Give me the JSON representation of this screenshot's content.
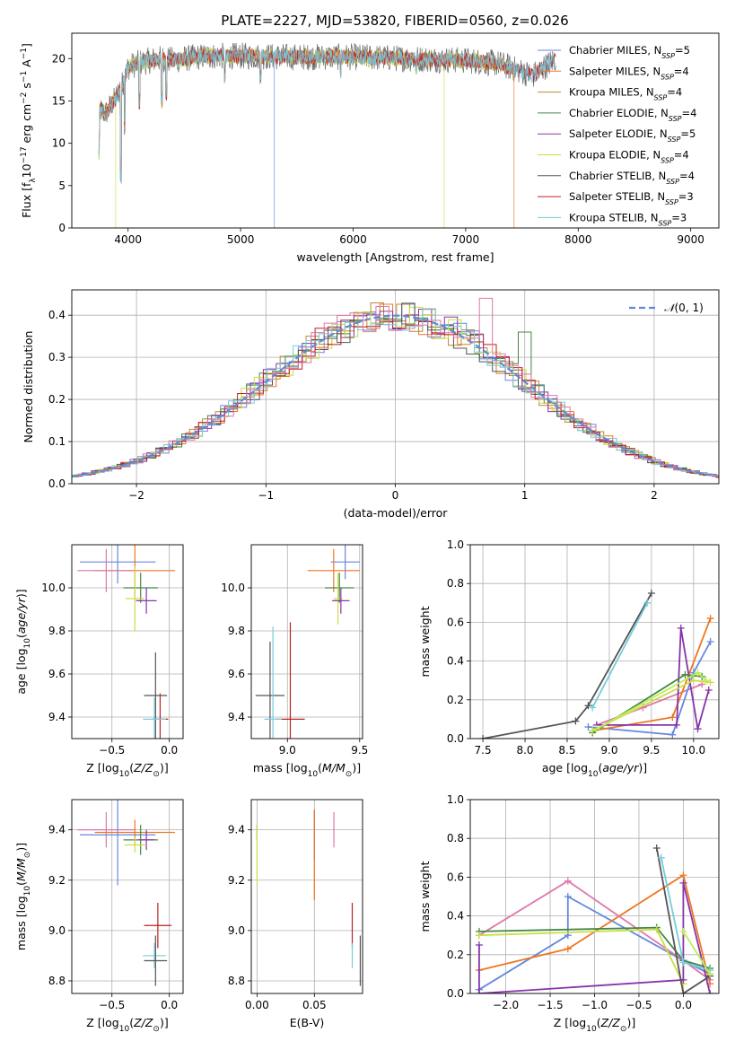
{
  "figure": {
    "title": "PLATE=2227, MJD=53820, FIBERID=0560, z=0.026"
  },
  "model_colors": {
    "Chabrier MILES": "#6688dd",
    "Salpeter MILES": "#ee7722",
    "Kroupa MILES": "#bb8833",
    "Chabrier ELODIE": "#448844",
    "Salpeter ELODIE": "#8833aa",
    "Kroupa ELODIE": "#ccdd44",
    "Chabrier STELIB": "#555555",
    "Salpeter STELIB": "#bb2222",
    "Kroupa STELIB": "#77ccdd",
    "pink": "#dd77aa",
    "lime": "#bbee55"
  },
  "chart_data": [
    {
      "type": "line",
      "panel": "spectrum",
      "title": "PLATE=2227, MJD=53820, FIBERID=0560, z=0.026",
      "xlabel": "wavelength [Angstrom, rest frame]",
      "ylabel": "Flux [f_λ10^-17 erg cm^-2 s^-1 A^-1]",
      "xlim": [
        3500,
        9250
      ],
      "ylim": [
        0,
        23
      ],
      "xticks": [
        4000,
        5000,
        6000,
        7000,
        8000,
        9000
      ],
      "yticks": [
        0,
        5,
        10,
        15,
        20
      ],
      "grid": false,
      "legend_position": "upper-right",
      "legend": [
        {
          "label": "Chabrier MILES, N_SSP=5",
          "color": "#6688dd"
        },
        {
          "label": "Salpeter MILES, N_SSP=4",
          "color": "#ee7722"
        },
        {
          "label": "Kroupa MILES, N_SSP=4",
          "color": "#bb8833"
        },
        {
          "label": "Chabrier ELODIE, N_SSP=4",
          "color": "#448844"
        },
        {
          "label": "Salpeter ELODIE, N_SSP=5",
          "color": "#8833aa"
        },
        {
          "label": "Kroupa ELODIE, N_SSP=4",
          "color": "#ccdd44"
        },
        {
          "label": "Chabrier STELIB, N_SSP=4",
          "color": "#555555"
        },
        {
          "label": "Salpeter STELIB, N_SSP=3",
          "color": "#bb2222"
        },
        {
          "label": "Kroupa STELIB, N_SSP=3",
          "color": "#77ccdd"
        }
      ],
      "continuum": {
        "x": [
          3740,
          3800,
          3900,
          3950,
          4000,
          4100,
          4200,
          4300,
          4400,
          4500,
          4700,
          5000,
          5500,
          6000,
          6500,
          7000,
          7300,
          7600,
          7800
        ],
        "y": [
          14,
          13.5,
          15.5,
          17,
          19,
          19.5,
          19.8,
          20,
          19.8,
          20,
          20.3,
          20.3,
          20.2,
          20.2,
          20.0,
          19.8,
          19.4,
          18.0,
          20.0
        ]
      },
      "dips": [
        {
          "wavelength": 3740,
          "depth": 8
        },
        {
          "wavelength": 3890,
          "depth": 0
        },
        {
          "wavelength": 3935,
          "depth": 5
        },
        {
          "wavelength": 3970,
          "depth": 11
        },
        {
          "wavelength": 4100,
          "depth": 14
        },
        {
          "wavelength": 4300,
          "depth": 14
        },
        {
          "wavelength": 4340,
          "depth": 15
        },
        {
          "wavelength": 4860,
          "depth": 17
        },
        {
          "wavelength": 5175,
          "depth": 17
        },
        {
          "wavelength": 5300,
          "depth": 0
        },
        {
          "wavelength": 5890,
          "depth": 17.5
        },
        {
          "wavelength": 6560,
          "depth": 18
        },
        {
          "wavelength": 6810,
          "depth": 0
        },
        {
          "wavelength": 7430,
          "depth": 0
        }
      ]
    },
    {
      "type": "bar",
      "panel": "residual-histogram",
      "xlabel": "(data-model)/error",
      "ylabel": "Normed distribution",
      "xlim": [
        -2.5,
        2.5
      ],
      "ylim": [
        0,
        0.46
      ],
      "xticks": [
        -2,
        -1,
        0,
        1,
        2
      ],
      "yticks": [
        0.0,
        0.1,
        0.2,
        0.3,
        0.4
      ],
      "grid": true,
      "legend_position": "upper-right",
      "legend": [
        {
          "label": "N(0,1)",
          "style": "dashed",
          "color": "#5b8bd6"
        }
      ],
      "bin_width": 0.1
    },
    {
      "type": "scatter",
      "panel": "age-vs-Z",
      "xlabel": "Z [log10(Z/Z⊙)]",
      "ylabel": "age  [log10(age/yr)]",
      "xlim": [
        -0.85,
        0.12
      ],
      "ylim": [
        9.3,
        10.2
      ],
      "xticks": [
        -0.5,
        0.0
      ],
      "yticks": [
        9.4,
        9.6,
        9.8,
        10.0
      ],
      "grid": true,
      "points": [
        {
          "model": "Chabrier MILES",
          "x": -0.45,
          "xerr": 0.33,
          "y": 10.12,
          "yerr": 0.1
        },
        {
          "model": "Salpeter MILES",
          "x": -0.3,
          "xerr": 0.35,
          "y": 10.08,
          "yerr": 0.12
        },
        {
          "model": "pink",
          "x": -0.55,
          "xerr": 0.25,
          "y": 10.08,
          "yerr": 0.1
        },
        {
          "model": "Chabrier ELODIE",
          "x": -0.25,
          "xerr": 0.15,
          "y": 10.0,
          "yerr": 0.07
        },
        {
          "model": "Kroupa ELODIE",
          "x": -0.3,
          "xerr": 0.08,
          "y": 9.95,
          "yerr": 0.15
        },
        {
          "model": "Salpeter ELODIE",
          "x": -0.2,
          "xerr": 0.09,
          "y": 9.94,
          "yerr": 0.06
        },
        {
          "model": "Chabrier STELIB",
          "x": -0.12,
          "xerr": 0.1,
          "y": 9.5,
          "yerr": 0.2
        },
        {
          "model": "Salpeter STELIB",
          "x": -0.08,
          "xerr": 0.07,
          "y": 9.39,
          "yerr": 0.12
        },
        {
          "model": "Kroupa STELIB",
          "x": -0.13,
          "xerr": 0.1,
          "y": 9.39,
          "yerr": 0.1
        }
      ]
    },
    {
      "type": "scatter",
      "panel": "age-vs-mass",
      "xlabel": "mass [log10(M/M⊙)]",
      "ylabel": "",
      "xlim": [
        8.75,
        9.52
      ],
      "ylim": [
        9.3,
        10.2
      ],
      "xticks": [
        9.0,
        9.5
      ],
      "yticks": [
        9.4,
        9.6,
        9.8,
        10.0
      ],
      "grid": true,
      "points": [
        {
          "model": "Chabrier MILES",
          "x": 9.4,
          "xerr": 0.1,
          "y": 10.12,
          "yerr": 0.08
        },
        {
          "model": "Salpeter MILES",
          "x": 9.32,
          "xerr": 0.18,
          "y": 10.08,
          "yerr": 0.1
        },
        {
          "model": "Chabrier ELODIE",
          "x": 9.36,
          "xerr": 0.1,
          "y": 10.0,
          "yerr": 0.07
        },
        {
          "model": "Kroupa ELODIE",
          "x": 9.35,
          "xerr": 0.03,
          "y": 9.95,
          "yerr": 0.12
        },
        {
          "model": "Salpeter ELODIE",
          "x": 9.37,
          "xerr": 0.06,
          "y": 9.94,
          "yerr": 0.06
        },
        {
          "model": "Chabrier STELIB",
          "x": 8.88,
          "xerr": 0.1,
          "y": 9.5,
          "yerr": 0.25
        },
        {
          "model": "Salpeter STELIB",
          "x": 9.02,
          "xerr": 0.1,
          "y": 9.39,
          "yerr": 0.45
        },
        {
          "model": "Kroupa STELIB",
          "x": 8.9,
          "xerr": 0.06,
          "y": 9.39,
          "yerr": 0.43
        }
      ]
    },
    {
      "type": "line",
      "panel": "mass-weight-vs-age",
      "xlabel": "age  [log10(age/yr)]",
      "ylabel": "mass weight",
      "xlim": [
        7.35,
        10.3
      ],
      "ylim": [
        0,
        1.0
      ],
      "xticks": [
        7.5,
        8.0,
        8.5,
        9.0,
        9.5,
        10.0
      ],
      "yticks": [
        0.0,
        0.2,
        0.4,
        0.6,
        0.8,
        1.0
      ],
      "grid": true,
      "series": [
        {
          "model": "Chabrier STELIB",
          "x": [
            7.5,
            8.6,
            8.75,
            9.5
          ],
          "y": [
            0.0,
            0.09,
            0.17,
            0.75
          ]
        },
        {
          "model": "Kroupa STELIB",
          "x": [
            8.8,
            9.45
          ],
          "y": [
            0.16,
            0.7
          ]
        },
        {
          "model": "pink",
          "x": [
            8.85,
            9.4,
            10.1
          ],
          "y": [
            0.07,
            0.16,
            0.28
          ]
        },
        {
          "model": "Chabrier MILES",
          "x": [
            8.75,
            9.75,
            10.0,
            10.2
          ],
          "y": [
            0.06,
            0.02,
            0.34,
            0.5
          ]
        },
        {
          "model": "Salpeter MILES",
          "x": [
            8.8,
            9.75,
            10.2
          ],
          "y": [
            0.04,
            0.11,
            0.62
          ]
        },
        {
          "model": "Salpeter ELODIE",
          "x": [
            8.85,
            9.8,
            9.85,
            10.05,
            10.18
          ],
          "y": [
            0.07,
            0.07,
            0.57,
            0.05,
            0.25
          ]
        },
        {
          "model": "Chabrier ELODIE",
          "x": [
            8.8,
            9.9,
            10.1
          ],
          "y": [
            0.03,
            0.33,
            0.32
          ]
        },
        {
          "model": "Kroupa ELODIE",
          "x": [
            8.8,
            10.0,
            10.2
          ],
          "y": [
            0.04,
            0.3,
            0.29
          ]
        },
        {
          "model": "lime",
          "x": [
            8.85,
            10.05,
            10.15
          ],
          "y": [
            0.05,
            0.34,
            0.3
          ]
        }
      ]
    },
    {
      "type": "scatter",
      "panel": "mass-vs-Z",
      "xlabel": "Z [log10(Z/Z⊙)]",
      "ylabel": "mass [log10(M/M⊙)]",
      "xlim": [
        -0.85,
        0.12
      ],
      "ylim": [
        8.75,
        9.52
      ],
      "xticks": [
        -0.5,
        0.0
      ],
      "yticks": [
        8.8,
        9.0,
        9.2,
        9.4
      ],
      "grid": true,
      "points": [
        {
          "model": "pink",
          "x": -0.55,
          "xerr": 0.25,
          "y": 9.4,
          "yerr": 0.07
        },
        {
          "model": "Chabrier MILES",
          "x": -0.45,
          "xerr": 0.33,
          "y": 9.38,
          "yerr": 0.2
        },
        {
          "model": "Salpeter MILES",
          "x": -0.3,
          "xerr": 0.35,
          "y": 9.39,
          "yerr": 0.05
        },
        {
          "model": "Chabrier ELODIE",
          "x": -0.25,
          "xerr": 0.15,
          "y": 9.36,
          "yerr": 0.06
        },
        {
          "model": "Kroupa ELODIE",
          "x": -0.3,
          "xerr": 0.09,
          "y": 9.34,
          "yerr": 0.03
        },
        {
          "model": "Salpeter ELODIE",
          "x": -0.2,
          "xerr": 0.07,
          "y": 9.36,
          "yerr": 0.04
        },
        {
          "model": "Salpeter STELIB",
          "x": -0.1,
          "xerr": 0.12,
          "y": 9.02,
          "yerr": 0.09
        },
        {
          "model": "Kroupa STELIB",
          "x": -0.13,
          "xerr": 0.1,
          "y": 8.9,
          "yerr": 0.05
        },
        {
          "model": "Chabrier STELIB",
          "x": -0.12,
          "xerr": 0.1,
          "y": 8.88,
          "yerr": 0.1
        }
      ]
    },
    {
      "type": "scatter",
      "panel": "mass-vs-EBV",
      "xlabel": "E(B-V)",
      "ylabel": "",
      "xlim": [
        -0.005,
        0.092
      ],
      "ylim": [
        8.75,
        9.52
      ],
      "xticks": [
        0.0,
        0.05
      ],
      "yticks": [
        8.8,
        9.0,
        9.2,
        9.4
      ],
      "grid": true,
      "points": [
        {
          "model": "Salpeter ELODIE",
          "x": 0.0,
          "y": 9.39,
          "yerr": 0.03
        },
        {
          "model": "Kroupa ELODIE",
          "x": 0.0,
          "y": 9.3,
          "yerr": 0.12
        },
        {
          "model": "Chabrier MILES",
          "x": 0.05,
          "y": 9.38,
          "yerr": 0.1
        },
        {
          "model": "Salpeter MILES",
          "x": 0.05,
          "y": 9.3,
          "yerr": 0.18
        },
        {
          "model": "pink",
          "x": 0.067,
          "y": 9.4,
          "yerr": 0.07
        },
        {
          "model": "Salpeter STELIB",
          "x": 0.083,
          "y": 9.02,
          "yerr": 0.09
        },
        {
          "model": "Kroupa STELIB",
          "x": 0.083,
          "y": 8.9,
          "yerr": 0.05
        },
        {
          "model": "Chabrier STELIB",
          "x": 0.09,
          "y": 8.88,
          "yerr": 0.1
        }
      ]
    },
    {
      "type": "line",
      "panel": "mass-weight-vs-Z",
      "xlabel": "Z [log10(Z/Z⊙)]",
      "ylabel": "mass weight",
      "xlim": [
        -2.4,
        0.4
      ],
      "ylim": [
        0,
        1.0
      ],
      "xticks": [
        -2.0,
        -1.5,
        -1.0,
        -0.5,
        0.0
      ],
      "yticks": [
        0.0,
        0.2,
        0.4,
        0.6,
        0.8,
        1.0
      ],
      "grid": true,
      "series": [
        {
          "model": "Chabrier MILES",
          "x": [
            -2.3,
            -1.3,
            -1.3,
            0.0,
            0.3
          ],
          "y": [
            0.02,
            0.3,
            0.5,
            0.17,
            0.1
          ]
        },
        {
          "model": "Salpeter MILES",
          "x": [
            -2.3,
            -1.3,
            0.0,
            0.3
          ],
          "y": [
            0.12,
            0.23,
            0.61,
            0.05
          ]
        },
        {
          "model": "pink",
          "x": [
            -2.3,
            -1.3,
            0.0,
            0.3
          ],
          "y": [
            0.3,
            0.58,
            0.17,
            0.07
          ]
        },
        {
          "model": "Chabrier ELODIE",
          "x": [
            -2.3,
            -0.3,
            0.0,
            0.3
          ],
          "y": [
            0.32,
            0.34,
            0.17,
            0.13
          ]
        },
        {
          "model": "Kroupa ELODIE",
          "x": [
            -2.3,
            -0.3,
            0.0
          ],
          "y": [
            0.3,
            0.33,
            0.05
          ]
        },
        {
          "model": "Salpeter ELODIE",
          "x": [
            -2.3,
            -2.3,
            0.0,
            0.0,
            0.3
          ],
          "y": [
            0.25,
            0.0,
            0.07,
            0.57,
            0.0
          ]
        },
        {
          "model": "Chabrier STELIB",
          "x": [
            -0.3,
            0.0,
            0.3
          ],
          "y": [
            0.75,
            0.0,
            0.09
          ]
        },
        {
          "model": "Kroupa STELIB",
          "x": [
            -0.25,
            0.0,
            0.3
          ],
          "y": [
            0.7,
            0.16,
            0.12
          ]
        },
        {
          "model": "lime",
          "x": [
            0.0,
            0.3
          ],
          "y": [
            0.32,
            0.1
          ]
        }
      ]
    }
  ]
}
